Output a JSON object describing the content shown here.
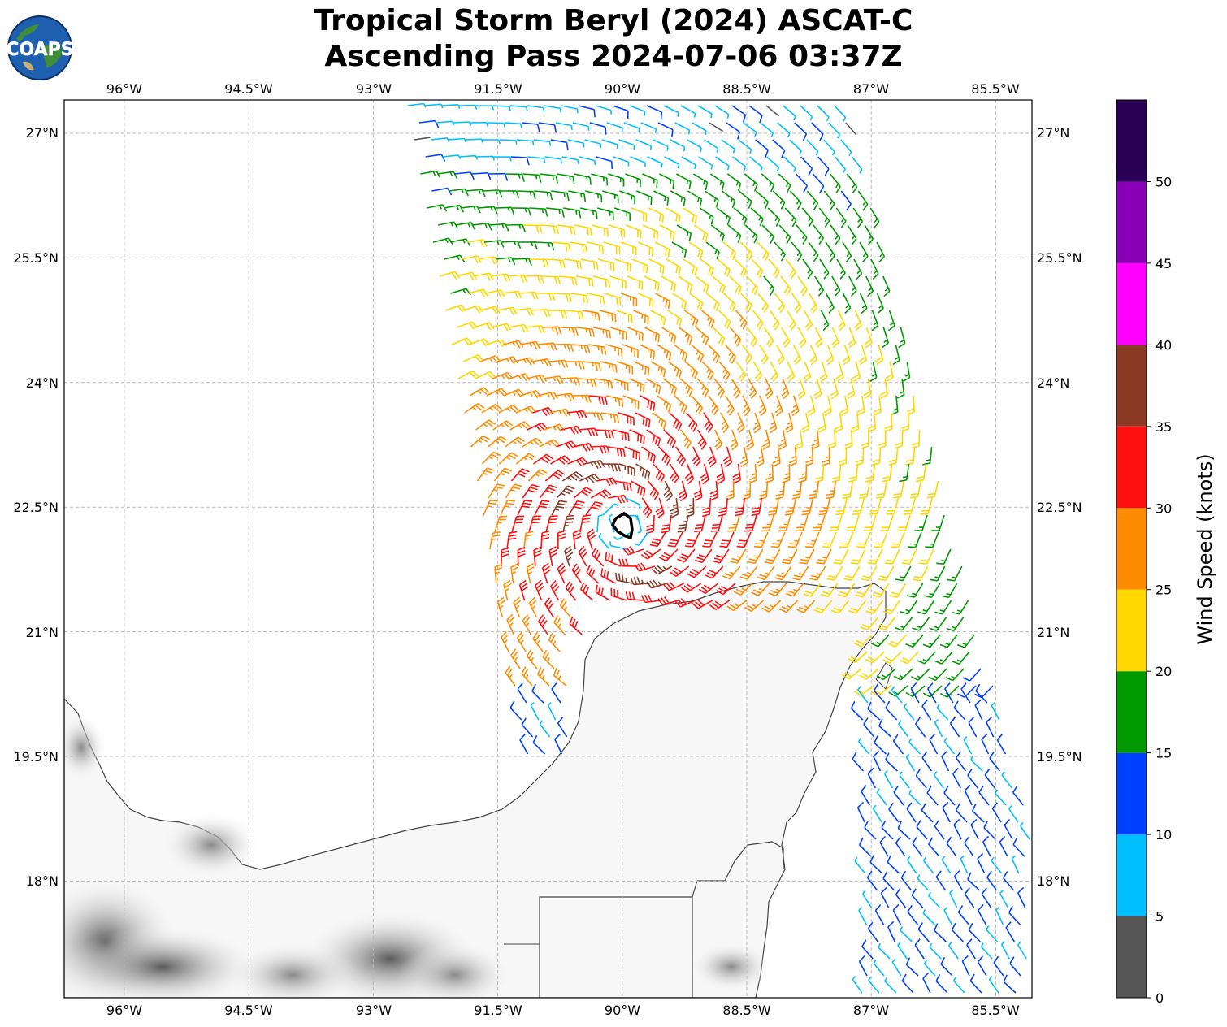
{
  "title": {
    "line1": "Tropical Storm Beryl (2024) ASCAT-C",
    "line2": "Ascending Pass 2024-07-06 03:37Z"
  },
  "logo_text": "COAPS",
  "axes": {
    "lon_labels": [
      "96°W",
      "94.5°W",
      "93°W",
      "91.5°W",
      "90°W",
      "88.5°W",
      "87°W",
      "85.5°W"
    ],
    "lat_labels": [
      "27°N",
      "25.5°N",
      "24°N",
      "22.5°N",
      "21°N",
      "19.5°N",
      "18°N"
    ]
  },
  "colorbar": {
    "label": "Wind Speed (knots)",
    "ticks": [
      "0",
      "5",
      "10",
      "15",
      "20",
      "25",
      "30",
      "35",
      "40",
      "45",
      "50"
    ],
    "colors": [
      "#555555",
      "#00bfff",
      "#0040ff",
      "#009900",
      "#ffd700",
      "#ff8c00",
      "#ff1010",
      "#8b3a26",
      "#ff00ff",
      "#8a00b8",
      "#2a0055"
    ]
  },
  "chart_data": {
    "type": "wind-barb-map",
    "lon_range": [
      "96.7°W",
      "85.1°W"
    ],
    "lat_range": [
      "16.8°N",
      "27.4°N"
    ],
    "storm_center": {
      "lon": -90.0,
      "lat": 22.3
    },
    "speed_range_knots": [
      0,
      55
    ],
    "grid": true
  }
}
